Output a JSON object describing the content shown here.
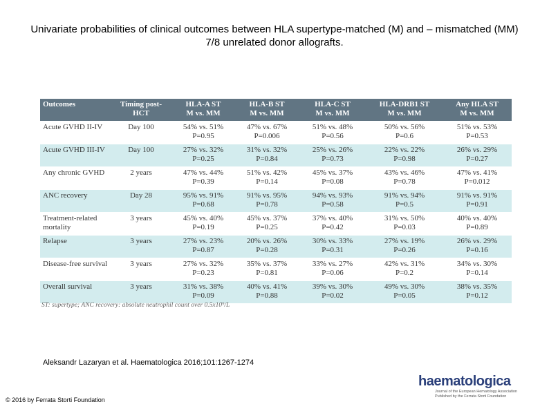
{
  "title": "Univariate probabilities of clinical outcomes between HLA supertype-matched (M) and – mismatched (MM) 7/8 unrelated donor allografts.",
  "table": {
    "header": [
      [
        "Outcomes"
      ],
      [
        "Timing post-HCT"
      ],
      [
        "HLA-A ST",
        "M vs. MM"
      ],
      [
        "HLA-B ST",
        "M vs. MM"
      ],
      [
        "HLA-C ST",
        "M vs. MM"
      ],
      [
        "HLA-DRB1 ST",
        "M vs. MM"
      ],
      [
        "Any HLA ST",
        "M vs. MM"
      ]
    ],
    "rows": [
      [
        [
          "Acute GVHD II-IV"
        ],
        [
          "Day 100"
        ],
        [
          "54% vs. 51%",
          "P=0.95"
        ],
        [
          "47% vs. 67%",
          "P=0.006"
        ],
        [
          "51% vs. 48%",
          "P=0.56"
        ],
        [
          "50% vs. 56%",
          "P=0.6"
        ],
        [
          "51% vs. 53%",
          "P=0.53"
        ]
      ],
      [
        [
          "Acute GVHD III-IV"
        ],
        [
          "Day 100"
        ],
        [
          "27% vs. 32%",
          "P=0.25"
        ],
        [
          "31% vs. 32%",
          "P=0.84"
        ],
        [
          "25% vs. 26%",
          "P=0.73"
        ],
        [
          "22% vs. 22%",
          "P=0.98"
        ],
        [
          "26% vs. 29%",
          "P=0.27"
        ]
      ],
      [
        [
          "Any chronic GVHD"
        ],
        [
          "2 years"
        ],
        [
          "47% vs. 44%",
          "P=0.39"
        ],
        [
          "51% vs. 42%",
          "P=0.14"
        ],
        [
          "45% vs. 37%",
          "P=0.08"
        ],
        [
          "43% vs. 46%",
          "P=0.78"
        ],
        [
          "47% vs. 41%",
          "P=0.012"
        ]
      ],
      [
        [
          "ANC recovery"
        ],
        [
          "Day 28"
        ],
        [
          "95% vs. 91%",
          "P=0.68"
        ],
        [
          "91% vs. 95%",
          "P=0.78"
        ],
        [
          "94% vs. 93%",
          "P=0.58"
        ],
        [
          "91% vs. 94%",
          "P=0.5"
        ],
        [
          "91% vs. 91%",
          "P=0.91"
        ]
      ],
      [
        [
          "Treatment-related mortality"
        ],
        [
          "3 years"
        ],
        [
          "45% vs. 40%",
          "P=0.19"
        ],
        [
          "45% vs. 37%",
          "P=0.25"
        ],
        [
          "37% vs. 40%",
          "P=0.42"
        ],
        [
          "31% vs. 50%",
          "P=0.03"
        ],
        [
          "40% vs. 40%",
          "P=0.89"
        ]
      ],
      [
        [
          "Relapse"
        ],
        [
          "3 years"
        ],
        [
          "27% vs. 23%",
          "P=0.87"
        ],
        [
          "20% vs. 26%",
          "P=0.28"
        ],
        [
          "30% vs. 33%",
          "P=0.31"
        ],
        [
          "27% vs. 19%",
          "P=0.26"
        ],
        [
          "26% vs. 29%",
          "P=0.16"
        ]
      ],
      [
        [
          "Disease-free survival"
        ],
        [
          "3 years"
        ],
        [
          "27% vs. 32%",
          "P=0.23"
        ],
        [
          "35% vs. 37%",
          "P=0.81"
        ],
        [
          "33% vs. 27%",
          "P=0.06"
        ],
        [
          "42% vs. 31%",
          "P=0.2"
        ],
        [
          "34% vs. 30%",
          "P=0.14"
        ]
      ],
      [
        [
          "Overall survival"
        ],
        [
          "3 years"
        ],
        [
          "31% vs. 38%",
          "P=0.09"
        ],
        [
          "40% vs. 41%",
          "P=0.88"
        ],
        [
          "39% vs. 30%",
          "P=0.02"
        ],
        [
          "49% vs. 30%",
          "P=0.05"
        ],
        [
          "38% vs. 35%",
          "P=0.12"
        ]
      ]
    ],
    "footnote": "ST: supertype; ANC recovery: absolute neutrophil count over 0.5x10⁹/L"
  },
  "citation": "Aleksandr Lazaryan et al. Haematologica 2016;101:1267-1274",
  "copyright": "© 2016 by Ferrata Storti Foundation",
  "logo": {
    "name": "haematologica",
    "line1": "Journal of the European Hematology Association",
    "line2": "Published by the Ferrata Storti Foundation"
  }
}
